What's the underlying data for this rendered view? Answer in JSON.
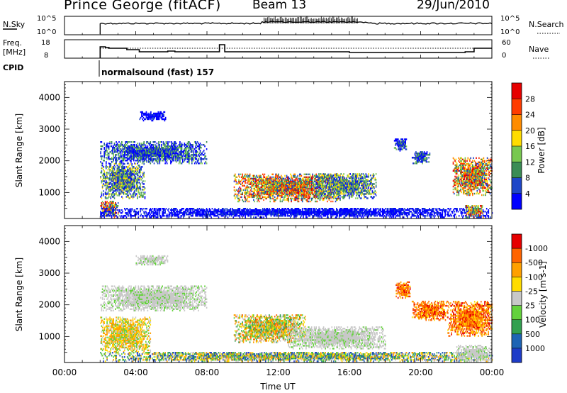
{
  "header": {
    "station": "Prince George (fitACF)",
    "beam": "Beam 13",
    "date": "29/Jun/2010"
  },
  "strip_noise": {
    "left_label": "N.Sky",
    "left_ticks": [
      "10^5",
      "10^0"
    ],
    "right_ticks": [
      "10^5",
      "10^0"
    ],
    "right_label": "N.Search"
  },
  "strip_freq": {
    "left_label_1": "Freq.",
    "left_label_2": "[MHz]",
    "left_ticks": [
      "18",
      "8"
    ],
    "right_ticks": [
      "60",
      "0"
    ],
    "right_label": "Nave"
  },
  "cpid": {
    "label": "CPID",
    "text": "normalsound (fast) 157"
  },
  "time_axis": {
    "ticks": [
      "00:00",
      "04:00",
      "08:00",
      "12:00",
      "16:00",
      "20:00",
      "00:00"
    ],
    "label": "Time UT"
  },
  "chart_data": [
    {
      "type": "heatmap",
      "name": "power-panel",
      "ylabel": "Slant Range [km]",
      "ylim": [
        180,
        4500
      ],
      "yticks": [
        1000,
        2000,
        3000,
        4000
      ],
      "xlim": [
        0,
        24
      ],
      "colorbar": {
        "label": "Power [dB]",
        "ticks": [
          "4",
          "8",
          "12",
          "16",
          "20",
          "24",
          "28"
        ],
        "colors": [
          "#0000ff",
          "#1e46c8",
          "#3a8c55",
          "#78c850",
          "#ffdc00",
          "#ff8c00",
          "#ff3c00",
          "#e60000"
        ]
      },
      "echo_regions": [
        {
          "t": [
            2.0,
            8.0
          ],
          "r": [
            1900,
            2600
          ],
          "level": "low-mid"
        },
        {
          "t": [
            2.0,
            4.5
          ],
          "r": [
            800,
            1900
          ],
          "level": "mid"
        },
        {
          "t": [
            2.0,
            3.0
          ],
          "r": [
            200,
            700
          ],
          "level": "high"
        },
        {
          "t": [
            4.2,
            5.7
          ],
          "r": [
            3250,
            3550
          ],
          "level": "low"
        },
        {
          "t": [
            2.0,
            24.0
          ],
          "r": [
            200,
            500
          ],
          "level": "low"
        },
        {
          "t": [
            9.5,
            15.5
          ],
          "r": [
            700,
            1600
          ],
          "level": "high"
        },
        {
          "t": [
            14.0,
            17.5
          ],
          "r": [
            800,
            1600
          ],
          "level": "mid"
        },
        {
          "t": [
            18.5,
            19.2
          ],
          "r": [
            2300,
            2700
          ],
          "level": "low-mid"
        },
        {
          "t": [
            19.5,
            20.5
          ],
          "r": [
            1900,
            2300
          ],
          "level": "low-mid"
        },
        {
          "t": [
            21.8,
            24.0
          ],
          "r": [
            900,
            2100
          ],
          "level": "high"
        },
        {
          "t": [
            22.5,
            23.5
          ],
          "r": [
            200,
            600
          ],
          "level": "high"
        }
      ]
    },
    {
      "type": "heatmap",
      "name": "velocity-panel",
      "ylabel": "Slant Range [km]",
      "ylim": [
        180,
        4500
      ],
      "yticks": [
        1000,
        2000,
        3000,
        4000
      ],
      "xlim": [
        0,
        24
      ],
      "colorbar": {
        "label": "Velocity [m s-1]",
        "ticks": [
          "1000",
          "500",
          "100",
          "25",
          "-25",
          "-100",
          "-500",
          "-1000"
        ],
        "colors": [
          "#1e3cc8",
          "#1e64b4",
          "#32a050",
          "#64d23c",
          "#c8c8c8",
          "#ffdc00",
          "#ffa000",
          "#ff6400",
          "#e60000"
        ]
      },
      "echo_regions": [
        {
          "t": [
            2.0,
            8.0
          ],
          "r": [
            1800,
            2600
          ],
          "level": "ground"
        },
        {
          "t": [
            2.0,
            4.8
          ],
          "r": [
            500,
            1600
          ],
          "level": "neg"
        },
        {
          "t": [
            4.0,
            5.8
          ],
          "r": [
            3250,
            3550
          ],
          "level": "ground"
        },
        {
          "t": [
            2.0,
            24.0
          ],
          "r": [
            200,
            500
          ],
          "level": "mixed"
        },
        {
          "t": [
            9.5,
            13.5
          ],
          "r": [
            800,
            1700
          ],
          "level": "neg-mixed"
        },
        {
          "t": [
            12.5,
            18.0
          ],
          "r": [
            600,
            1300
          ],
          "level": "ground"
        },
        {
          "t": [
            18.6,
            19.4
          ],
          "r": [
            2200,
            2700
          ],
          "level": "neg-strong"
        },
        {
          "t": [
            19.5,
            21.5
          ],
          "r": [
            1500,
            2100
          ],
          "level": "neg-strong"
        },
        {
          "t": [
            21.5,
            24.0
          ],
          "r": [
            1000,
            2100
          ],
          "level": "neg-strong"
        },
        {
          "t": [
            22.0,
            24.0
          ],
          "r": [
            200,
            700
          ],
          "level": "ground"
        }
      ]
    }
  ]
}
